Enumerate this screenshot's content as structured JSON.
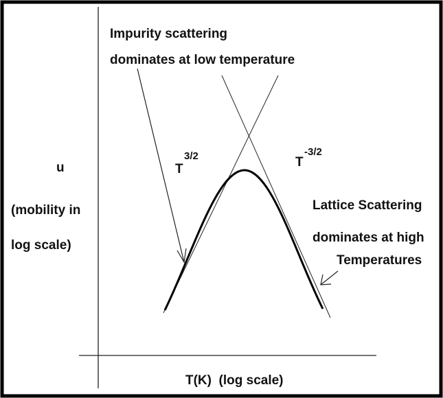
{
  "impurity_note": {
    "line1": "Impurity scattering",
    "line2": "dominates at low temperature"
  },
  "rising_slope": {
    "base": "T",
    "exponent": "3/2"
  },
  "falling_slope": {
    "base": "T",
    "exponent": "-3/2"
  },
  "y_axis": {
    "symbol": "u",
    "line1": "(mobility in",
    "line2": "log scale)"
  },
  "lattice_note": {
    "line1": "Lattice Scattering",
    "line2": "dominates at high",
    "line3": "Temperatures"
  },
  "x_axis": {
    "label": "T(K)  (log scale)"
  }
}
